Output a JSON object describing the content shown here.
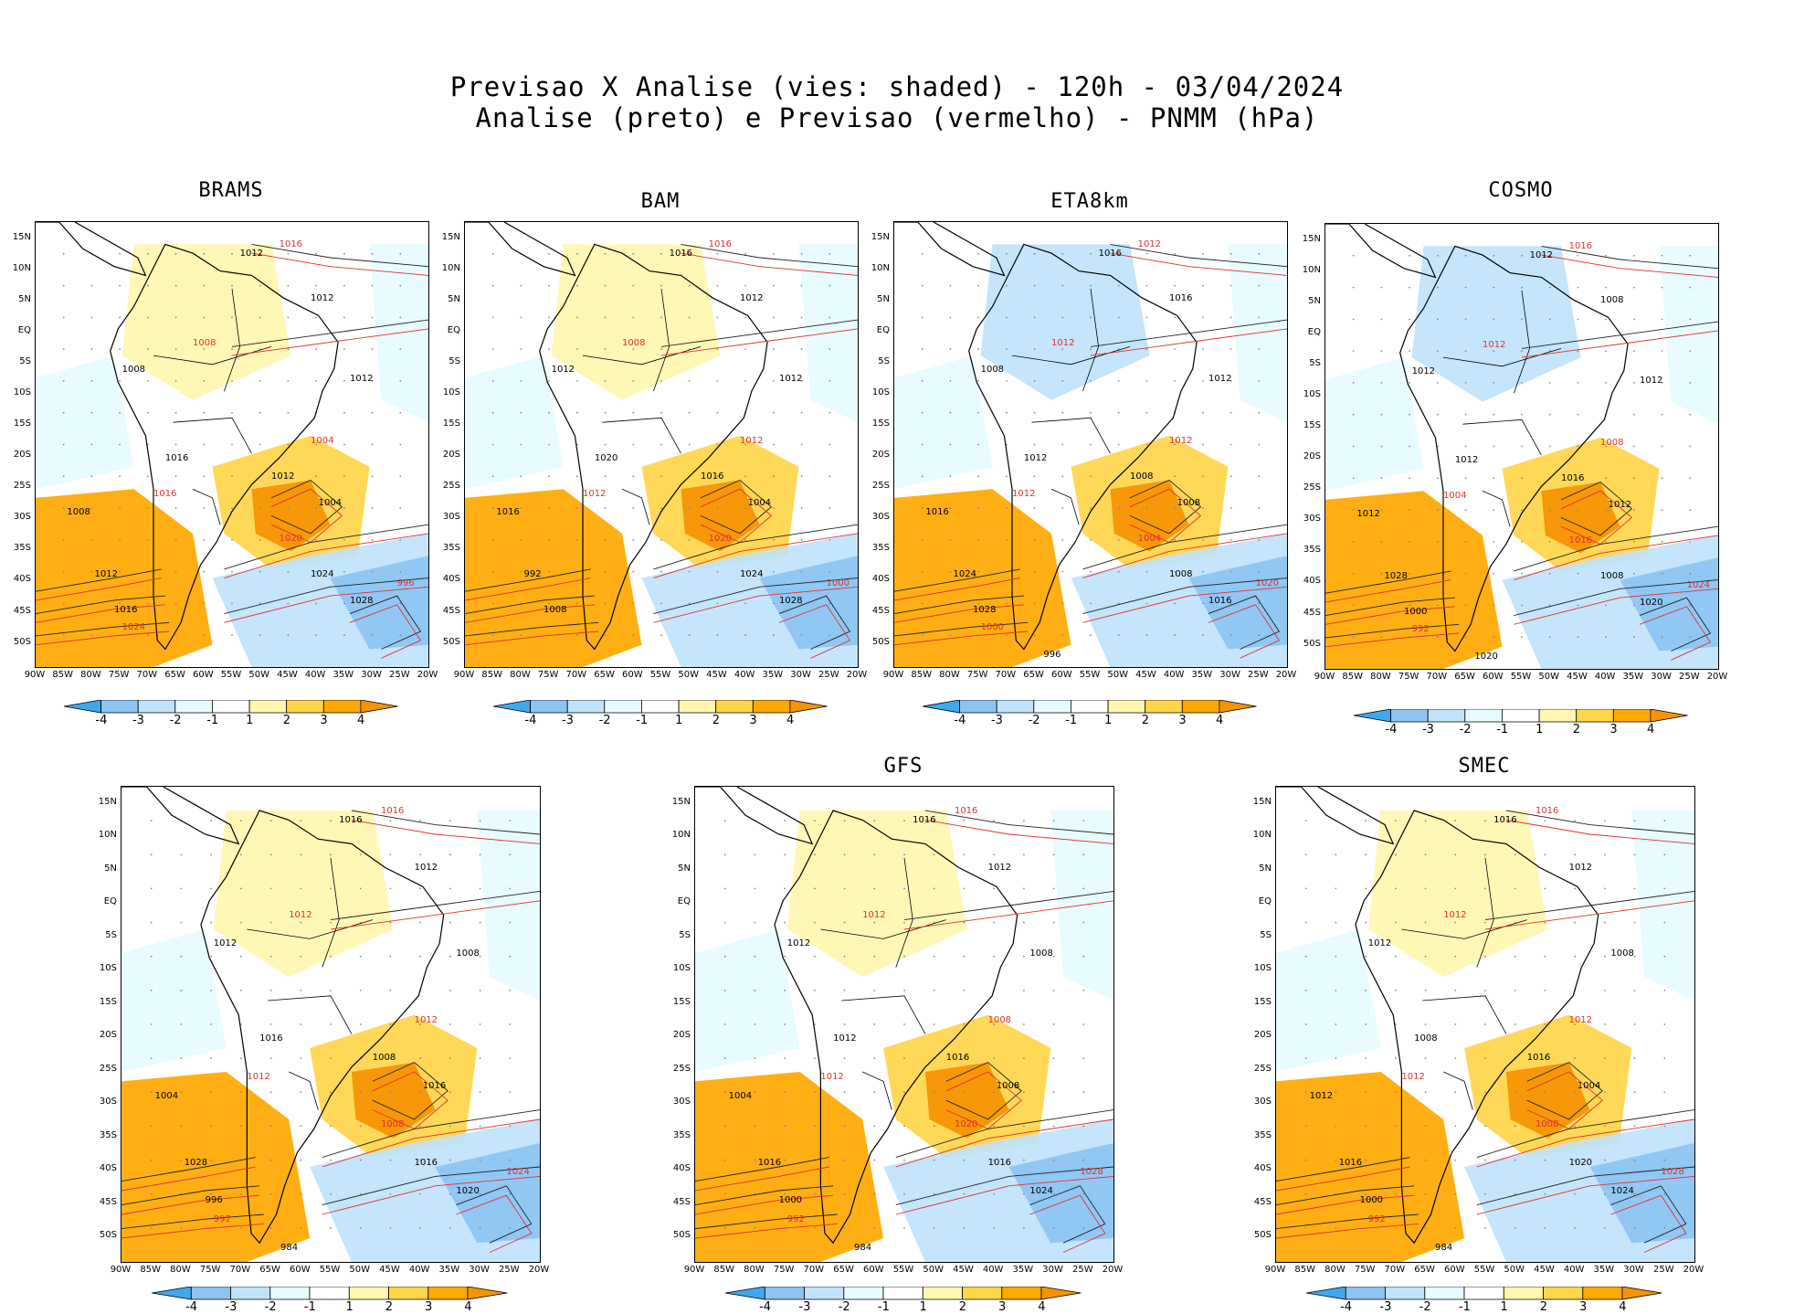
{
  "header": {
    "title_line1": "Previsao X Analise (vies: shaded) - 120h - 03/04/2024",
    "title_line2": "Analise (preto) e Previsao (vermelho) - PNMM (hPa)"
  },
  "lat_labels": [
    "15N",
    "10N",
    "5N",
    "EQ",
    "5S",
    "10S",
    "15S",
    "20S",
    "25S",
    "30S",
    "35S",
    "40S",
    "45S",
    "50S"
  ],
  "lon_labels": [
    "90W",
    "85W",
    "80W",
    "75W",
    "70W",
    "65W",
    "60W",
    "55W",
    "50W",
    "45W",
    "40W",
    "35W",
    "30W",
    "25W",
    "20W"
  ],
  "colorbar": {
    "labels": [
      "-4",
      "-3",
      "-2",
      "-1",
      "1",
      "2",
      "3",
      "4"
    ],
    "colors": [
      "#3fa9f0",
      "#8cc4f2",
      "#bfe3fb",
      "#e6fbff",
      "#ffffff",
      "#fff6b0",
      "#ffd54a",
      "#ffa800",
      "#f59300"
    ]
  },
  "panels": [
    {
      "name": "BRAMS",
      "isobars": [
        "1016",
        "1012",
        "1012",
        "1008",
        "1012",
        "1008",
        "1004",
        "1016",
        "1012",
        "1016",
        "1004",
        "1008",
        "1020",
        "1024",
        "1028",
        "996",
        "1012",
        "1016",
        "1024"
      ]
    },
    {
      "name": "BAM",
      "isobars": [
        "1016",
        "1016",
        "1012",
        "1008",
        "1012",
        "1012",
        "1012",
        "1020",
        "1016",
        "1012",
        "1004",
        "1016",
        "1020",
        "1024",
        "1028",
        "1000",
        "992",
        "1008"
      ]
    },
    {
      "name": "ETA8km",
      "isobars": [
        "1012",
        "1016",
        "1016",
        "1012",
        "1012",
        "1008",
        "1012",
        "1012",
        "1008",
        "1012",
        "1008",
        "1016",
        "1004",
        "1008",
        "1016",
        "1020",
        "1024",
        "1028",
        "1000",
        "996"
      ]
    },
    {
      "name": "COSMO",
      "isobars": [
        "1016",
        "1012",
        "1008",
        "1012",
        "1012",
        "1012",
        "1008",
        "1012",
        "1016",
        "1004",
        "1012",
        "1012",
        "1016",
        "1008",
        "1020",
        "1024",
        "1028",
        "1000",
        "992",
        "1020"
      ]
    },
    {
      "name": "",
      "isobars": [
        "1016",
        "1016",
        "1012",
        "1012",
        "1008",
        "1012",
        "1012",
        "1016",
        "1008",
        "1012",
        "1016",
        "1004",
        "1008",
        "1016",
        "1020",
        "1024",
        "1028",
        "996",
        "992",
        "984"
      ]
    },
    {
      "name": "GFS",
      "isobars": [
        "1016",
        "1016",
        "1012",
        "1012",
        "1008",
        "1012",
        "1008",
        "1012",
        "1016",
        "1012",
        "1008",
        "1004",
        "1020",
        "1016",
        "1024",
        "1028",
        "1016",
        "1000",
        "992",
        "984"
      ]
    },
    {
      "name": "SMEC",
      "isobars": [
        "1016",
        "1016",
        "1012",
        "1012",
        "1008",
        "1012",
        "1012",
        "1008",
        "1016",
        "1012",
        "1004",
        "1012",
        "1008",
        "1020",
        "1024",
        "1028",
        "1016",
        "1000",
        "992",
        "984"
      ]
    }
  ]
}
